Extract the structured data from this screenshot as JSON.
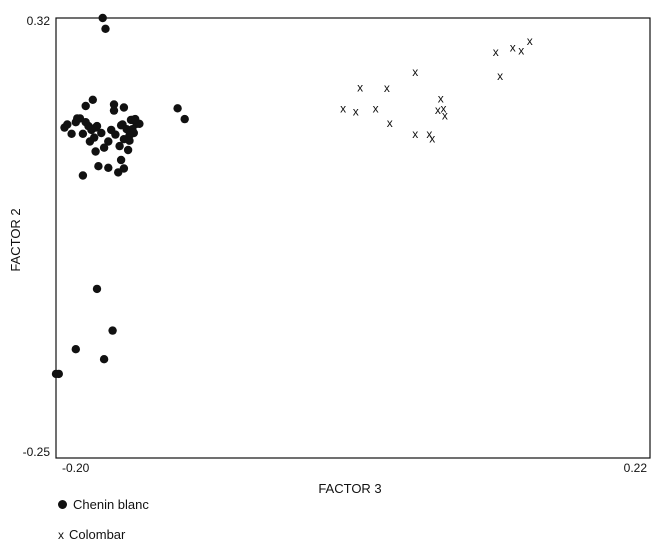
{
  "chart_data": {
    "type": "scatter",
    "xlabel": "FACTOR 3",
    "ylabel": "FACTOR 2",
    "xlim": [
      -0.2,
      0.22
    ],
    "ylim": [
      -0.25,
      0.32
    ],
    "x_tick_labels": [
      "-0.20",
      "0.22"
    ],
    "y_tick_labels": [
      "0.32",
      "-0.25"
    ],
    "grid": false,
    "legend_position": "bottom-left",
    "series": [
      {
        "name": "Chenin blanc",
        "marker": "dot",
        "points": [
          [
            -0.167,
            0.32
          ],
          [
            -0.165,
            0.306
          ],
          [
            -0.198,
            -0.141
          ],
          [
            -0.152,
            0.163
          ],
          [
            -0.174,
            0.214
          ],
          [
            -0.179,
            0.206
          ],
          [
            -0.161,
            0.175
          ],
          [
            -0.152,
            0.204
          ],
          [
            -0.147,
            0.188
          ],
          [
            -0.146,
            0.188
          ],
          [
            -0.154,
            0.181
          ],
          [
            -0.159,
            0.208
          ],
          [
            -0.153,
            0.182
          ],
          [
            -0.143,
            0.183
          ],
          [
            -0.146,
            0.176
          ],
          [
            -0.141,
            0.183
          ],
          [
            -0.144,
            0.189
          ],
          [
            -0.15,
            0.176
          ],
          [
            -0.145,
            0.171
          ],
          [
            -0.148,
            0.168
          ],
          [
            -0.148,
            0.161
          ],
          [
            -0.159,
            0.2
          ],
          [
            -0.177,
            0.18
          ],
          [
            -0.179,
            0.185
          ],
          [
            -0.181,
            0.17
          ],
          [
            -0.183,
            0.19
          ],
          [
            -0.186,
            0.185
          ],
          [
            -0.189,
            0.17
          ],
          [
            -0.194,
            0.178
          ],
          [
            -0.192,
            0.182
          ],
          [
            -0.185,
            0.19
          ],
          [
            -0.172,
            0.178
          ],
          [
            -0.168,
            0.171
          ],
          [
            -0.171,
            0.18
          ],
          [
            -0.173,
            0.165
          ],
          [
            -0.17,
            0.128
          ],
          [
            -0.176,
            0.16
          ],
          [
            -0.163,
            0.126
          ],
          [
            -0.181,
            0.116
          ],
          [
            -0.175,
            0.175
          ],
          [
            -0.158,
            0.169
          ],
          [
            -0.163,
            0.16
          ],
          [
            -0.166,
            0.152
          ],
          [
            -0.172,
            0.147
          ],
          [
            -0.155,
            0.154
          ],
          [
            -0.149,
            0.149
          ],
          [
            -0.154,
            0.136
          ],
          [
            -0.152,
            0.125
          ],
          [
            -0.156,
            0.12
          ],
          [
            -0.114,
            0.203
          ],
          [
            -0.109,
            0.189
          ],
          [
            -0.2,
            -0.141
          ],
          [
            -0.186,
            -0.109
          ],
          [
            -0.166,
            -0.122
          ],
          [
            -0.16,
            -0.085
          ],
          [
            -0.171,
            -0.031
          ]
        ]
      },
      {
        "name": "Colombar",
        "marker": "x",
        "points": [
          [
            0.003,
            0.203
          ],
          [
            0.012,
            0.199
          ],
          [
            0.015,
            0.23
          ],
          [
            0.026,
            0.203
          ],
          [
            0.034,
            0.229
          ],
          [
            0.036,
            0.184
          ],
          [
            0.054,
            0.25
          ],
          [
            0.054,
            0.17
          ],
          [
            0.064,
            0.17
          ],
          [
            0.066,
            0.164
          ],
          [
            0.07,
            0.201
          ],
          [
            0.072,
            0.216
          ],
          [
            0.074,
            0.203
          ],
          [
            0.075,
            0.194
          ],
          [
            0.111,
            0.276
          ],
          [
            0.114,
            0.245
          ],
          [
            0.123,
            0.282
          ],
          [
            0.129,
            0.278
          ],
          [
            0.135,
            0.29
          ]
        ]
      }
    ]
  },
  "legend": {
    "chenin_label": "Chenin blanc",
    "colombar_label": "Colombar"
  }
}
